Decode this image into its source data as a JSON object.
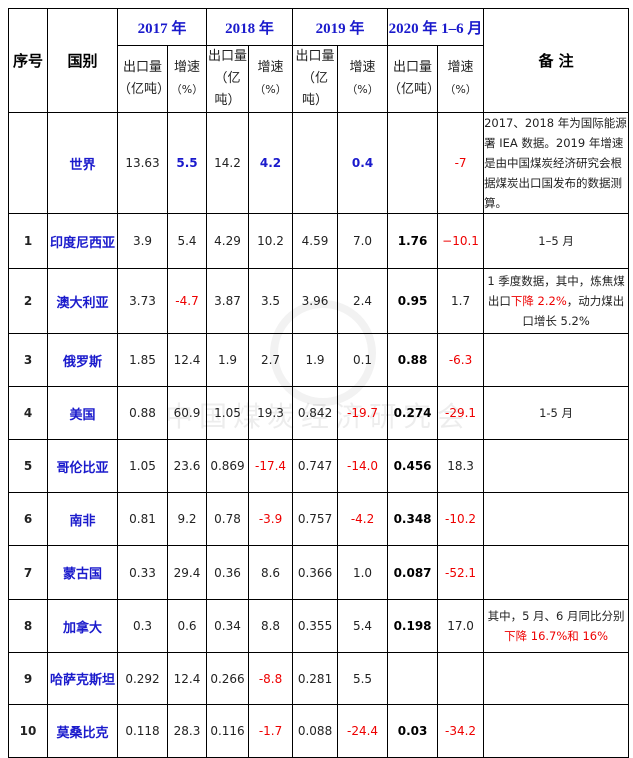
{
  "header": {
    "index": "序号",
    "country": "国别",
    "years": [
      "2017 年",
      "2018 年",
      "2019 年",
      "2020 年 1–6 月"
    ],
    "remarks": "备  注",
    "export_label": [
      "出口量",
      "（亿吨）"
    ],
    "growth_label": [
      "增速",
      "（%）"
    ]
  },
  "rows": [
    {
      "index": "",
      "country": "世界",
      "v": [
        "13.63",
        "5.5",
        "14.2",
        "4.2",
        "",
        "0.4",
        "",
        "-7"
      ],
      "note": [
        {
          "t": "2017、2018 年为国际能源署 IEA 数据。2019 年增速是由中国煤炭经济研究会根据煤炭出口国发布的数据测算。",
          "c": ""
        }
      ]
    },
    {
      "index": "1",
      "country": "印度尼西亚",
      "v": [
        "3.9",
        "5.4",
        "4.29",
        "10.2",
        "4.59",
        "7.0",
        "1.76",
        "−10.1"
      ],
      "note": [
        {
          "t": "1–5 月",
          "c": ""
        }
      ]
    },
    {
      "index": "2",
      "country": "澳大利亚",
      "v": [
        "3.73",
        "-4.7",
        "3.87",
        "3.5",
        "3.96",
        "2.4",
        "0.95",
        "1.7"
      ],
      "note": [
        {
          "t": "1 季度数据，其中，炼焦煤出口",
          "c": ""
        },
        {
          "t": "下降 2.2%",
          "c": "#e00"
        },
        {
          "t": "，动力煤出口增长 5.2%",
          "c": ""
        }
      ]
    },
    {
      "index": "3",
      "country": "俄罗斯",
      "v": [
        "1.85",
        "12.4",
        "1.9",
        "2.7",
        "1.9",
        "0.1",
        "0.88",
        "-6.3"
      ],
      "note": []
    },
    {
      "index": "4",
      "country": "美国",
      "v": [
        "0.88",
        "60.9",
        "1.05",
        "19.3",
        "0.842",
        "-19.7",
        "0.274",
        "-29.1"
      ],
      "note": [
        {
          "t": "1-5 月",
          "c": ""
        }
      ]
    },
    {
      "index": "5",
      "country": "哥伦比亚",
      "v": [
        "1.05",
        "23.6",
        "0.869",
        "-17.4",
        "0.747",
        "-14.0",
        "0.456",
        "18.3"
      ],
      "note": []
    },
    {
      "index": "6",
      "country": "南非",
      "v": [
        "0.81",
        "9.2",
        "0.78",
        "-3.9",
        "0.757",
        "-4.2",
        "0.348",
        "-10.2"
      ],
      "note": []
    },
    {
      "index": "7",
      "country": "蒙古国",
      "v": [
        "0.33",
        "29.4",
        "0.36",
        "8.6",
        "0.366",
        "1.0",
        "0.087",
        "-52.1"
      ],
      "note": []
    },
    {
      "index": "8",
      "country": "加拿大",
      "v": [
        "0.3",
        "0.6",
        "0.34",
        "8.8",
        "0.355",
        "5.4",
        "0.198",
        "17.0"
      ],
      "note": [
        {
          "t": "其中，5 月、6 月同比分别",
          "c": ""
        },
        {
          "t": "下降 16.7%和 16%",
          "c": "#e00"
        }
      ]
    },
    {
      "index": "9",
      "country": "哈萨克斯坦",
      "v": [
        "0.292",
        "12.4",
        "0.266",
        "-8.8",
        "0.281",
        "5.5",
        "",
        ""
      ],
      "note": []
    },
    {
      "index": "10",
      "country": "莫桑比克",
      "v": [
        "0.118",
        "28.3",
        "0.116",
        "-1.7",
        "0.088",
        "-24.4",
        "0.03",
        "-34.2"
      ],
      "note": []
    }
  ],
  "watermark": "中国煤炭经济研究会",
  "colors": {
    "accent": "#1a1acc",
    "negative": "#e00"
  }
}
